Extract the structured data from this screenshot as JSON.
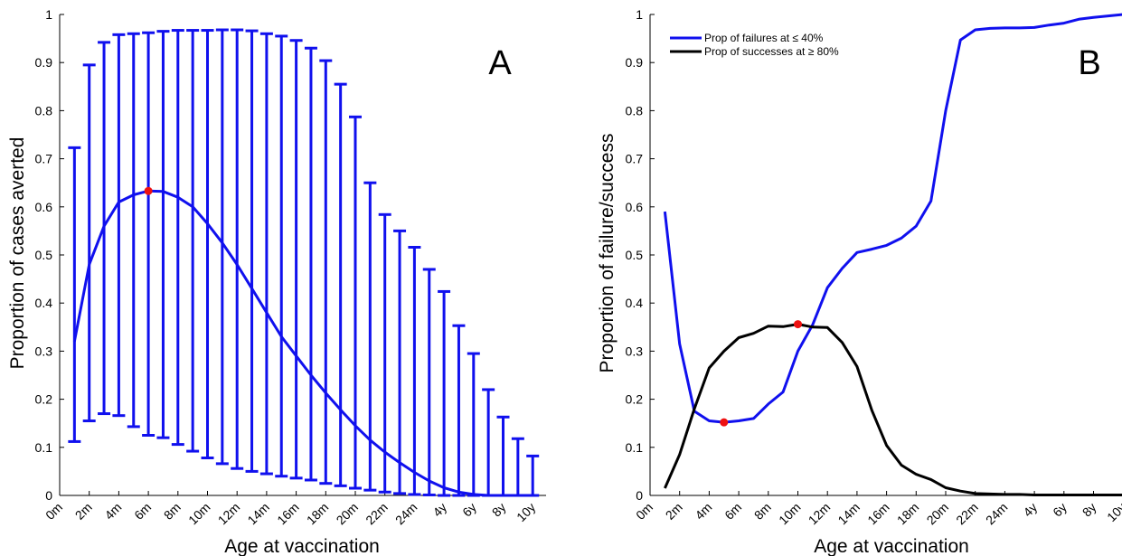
{
  "chart_data": [
    {
      "type": "line",
      "panel_label": "A",
      "xlabel": "Age at vaccination",
      "ylabel": "Proportion of cases averted",
      "ylim": [
        0,
        1
      ],
      "yticks": [
        "0",
        "0.1",
        "0.2",
        "0.3",
        "0.4",
        "0.5",
        "0.6",
        "0.7",
        "0.8",
        "0.9",
        "1"
      ],
      "xticks": [
        "0m",
        "2m",
        "4m",
        "6m",
        "8m",
        "10m",
        "12m",
        "14m",
        "16m",
        "18m",
        "20m",
        "22m",
        "24m",
        "4y",
        "6y",
        "8y",
        "10y"
      ],
      "grid": false,
      "colors": {
        "series": "#1010ee",
        "highlight": "#ee1111"
      },
      "series": [
        {
          "style": "line-with-errorbars",
          "x_index": [
            1,
            2,
            3,
            4,
            5,
            6,
            7,
            8,
            9,
            10,
            11,
            12,
            13,
            14,
            15,
            16,
            17,
            18,
            19,
            20,
            21,
            22,
            23,
            24,
            25,
            26,
            27,
            28,
            29,
            30,
            31,
            32
          ],
          "mean": [
            0.32,
            0.48,
            0.56,
            0.61,
            0.625,
            0.633,
            0.632,
            0.62,
            0.6,
            0.565,
            0.525,
            0.48,
            0.43,
            0.38,
            0.33,
            0.29,
            0.25,
            0.213,
            0.178,
            0.145,
            0.115,
            0.09,
            0.068,
            0.048,
            0.03,
            0.016,
            0.007,
            0.002,
            0.0,
            0.0,
            0.0,
            0.0
          ],
          "lower": [
            0.112,
            0.155,
            0.17,
            0.166,
            0.143,
            0.125,
            0.12,
            0.106,
            0.092,
            0.078,
            0.066,
            0.056,
            0.05,
            0.045,
            0.04,
            0.036,
            0.032,
            0.025,
            0.02,
            0.015,
            0.011,
            0.007,
            0.004,
            0.002,
            0.001,
            0.0,
            0.0,
            0.0,
            0.0,
            0.0,
            0.0,
            0.0
          ],
          "upper": [
            0.723,
            0.895,
            0.942,
            0.958,
            0.96,
            0.962,
            0.965,
            0.967,
            0.967,
            0.967,
            0.968,
            0.968,
            0.966,
            0.96,
            0.955,
            0.946,
            0.93,
            0.904,
            0.855,
            0.787,
            0.65,
            0.584,
            0.55,
            0.516,
            0.47,
            0.424,
            0.353,
            0.295,
            0.22,
            0.163,
            0.118,
            0.082
          ]
        }
      ],
      "highlight_point": {
        "x_index": 6,
        "y": 0.633
      }
    },
    {
      "type": "line",
      "panel_label": "B",
      "xlabel": "Age at vaccination",
      "ylabel": "Proportion of failure/success",
      "ylim": [
        0,
        1
      ],
      "yticks": [
        "0",
        "0.1",
        "0.2",
        "0.3",
        "0.4",
        "0.5",
        "0.6",
        "0.7",
        "0.8",
        "0.9",
        "1"
      ],
      "xticks": [
        "0m",
        "2m",
        "4m",
        "6m",
        "8m",
        "10m",
        "12m",
        "14m",
        "16m",
        "18m",
        "20m",
        "22m",
        "24m",
        "4y",
        "6y",
        "8y",
        "10y"
      ],
      "grid": false,
      "legend_position": "top-left",
      "series": [
        {
          "name": "Prop of failures at ≤ 40%",
          "color": "#1010ee",
          "x_index": [
            1,
            2,
            3,
            4,
            5,
            6,
            7,
            8,
            9,
            10,
            11,
            12,
            13,
            14,
            15,
            16,
            17,
            18,
            19,
            20,
            21,
            22,
            23,
            24,
            25,
            26,
            27,
            28,
            29,
            30,
            31,
            32
          ],
          "values": [
            0.59,
            0.315,
            0.175,
            0.155,
            0.152,
            0.155,
            0.16,
            0.19,
            0.215,
            0.3,
            0.355,
            0.432,
            0.472,
            0.505,
            0.512,
            0.52,
            0.535,
            0.56,
            0.612,
            0.8,
            0.947,
            0.968,
            0.971,
            0.972,
            0.972,
            0.973,
            0.978,
            0.982,
            0.99,
            0.994,
            0.997,
            1.0
          ],
          "highlight_point": {
            "x_index": 5,
            "y": 0.152
          }
        },
        {
          "name": "Prop of successes at ≥ 80%",
          "color": "#000000",
          "x_index": [
            1,
            2,
            3,
            4,
            5,
            6,
            7,
            8,
            9,
            10,
            11,
            12,
            13,
            14,
            15,
            16,
            17,
            18,
            19,
            20,
            21,
            22,
            23,
            24,
            25,
            26,
            27,
            28,
            29,
            30,
            31,
            32
          ],
          "values": [
            0.015,
            0.085,
            0.18,
            0.265,
            0.3,
            0.328,
            0.337,
            0.352,
            0.351,
            0.356,
            0.35,
            0.349,
            0.318,
            0.268,
            0.177,
            0.104,
            0.063,
            0.044,
            0.033,
            0.016,
            0.009,
            0.004,
            0.003,
            0.002,
            0.002,
            0.001,
            0.001,
            0.001,
            0.001,
            0.001,
            0.001,
            0.001
          ],
          "highlight_point": {
            "x_index": 10,
            "y": 0.356
          }
        }
      ]
    }
  ]
}
